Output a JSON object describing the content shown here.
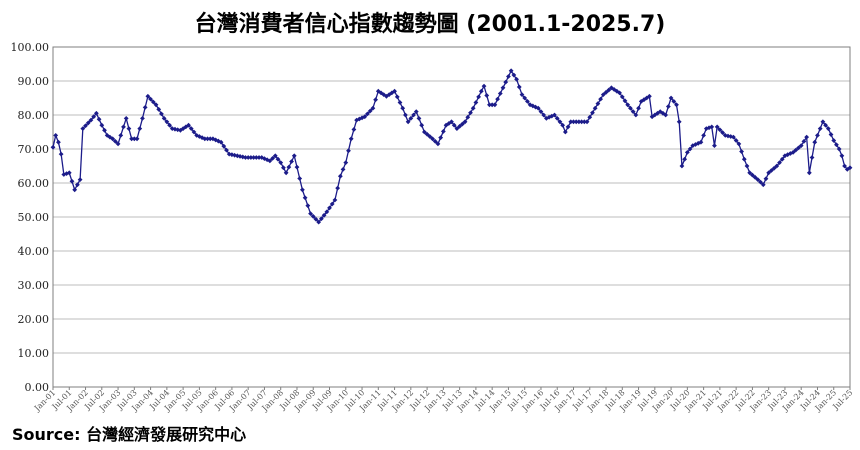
{
  "title": "台灣消費者信心指數趨勢圖 (2001.1-2025.7)",
  "source": "Source: 台灣經濟發展研究中心",
  "colors": {
    "line": "#1c1c8a",
    "marker": "#1c1c8a",
    "grid": "#bdbdbd",
    "axis": "#7f7f7f"
  },
  "chart_data": {
    "type": "line",
    "title": "台灣消費者信心指數趨勢圖 (2001.1-2025.7)",
    "xlabel": "",
    "ylabel": "",
    "ylim": [
      0,
      100
    ],
    "y_ticks": [
      "0.00",
      "10.00",
      "20.00",
      "30.00",
      "40.00",
      "50.00",
      "60.00",
      "70.00",
      "80.00",
      "90.00",
      "100.00"
    ],
    "grid": true,
    "legend": "none",
    "x_start": "Jan-01",
    "x_end": "Jul-25",
    "x_tick_labels": [
      "Jan-01",
      "Jul-01",
      "Jan-02",
      "Jul-02",
      "Jan-03",
      "Jul-03",
      "Jan-04",
      "Jul-04",
      "Jan-05",
      "Jul-05",
      "Jan-06",
      "Jul-06",
      "Jan-07",
      "Jul-07",
      "Jan-08",
      "Jul-08",
      "Jan-09",
      "Jul-09",
      "Jan-10",
      "Jul-10",
      "Jan-11",
      "Jul-11",
      "Jan-12",
      "Jul-12",
      "Jan-13",
      "Jul-13",
      "Jan-14",
      "Jul-14",
      "Jan-15",
      "Jul-15",
      "Jan-16",
      "Jul-16",
      "Jan-17",
      "Jul-17",
      "Jan-18",
      "Jul-18",
      "Jan-19",
      "Jul-19",
      "Jan-20",
      "Jul-20",
      "Jan-21",
      "Jul-21",
      "Jan-22",
      "Jul-22",
      "Jan-23",
      "Jul-23",
      "Jan-24",
      "Jul-24",
      "Jan-25",
      "Jul-25"
    ],
    "anchors": [
      [
        "Jan-01",
        70.5
      ],
      [
        "Feb-01",
        74
      ],
      [
        "Mar-01",
        72
      ],
      [
        "Apr-01",
        68.5
      ],
      [
        "May-01",
        62.5
      ],
      [
        "Jul-01",
        63
      ],
      [
        "Sep-01",
        58
      ],
      [
        "Nov-01",
        61
      ],
      [
        "Dec-01",
        76
      ],
      [
        "Mar-02",
        78.5
      ],
      [
        "May-02",
        80.5
      ],
      [
        "Jul-02",
        77
      ],
      [
        "Sep-02",
        74
      ],
      [
        "Nov-02",
        73
      ],
      [
        "Jan-03",
        71.5
      ],
      [
        "Apr-03",
        79
      ],
      [
        "Jun-03",
        73
      ],
      [
        "Aug-03",
        73
      ],
      [
        "Oct-03",
        79
      ],
      [
        "Dec-03",
        85.5
      ],
      [
        "Mar-04",
        83
      ],
      [
        "Jun-04",
        79
      ],
      [
        "Sep-04",
        76
      ],
      [
        "Dec-04",
        75.5
      ],
      [
        "Mar-05",
        77
      ],
      [
        "Jun-05",
        74
      ],
      [
        "Sep-05",
        73
      ],
      [
        "Dec-05",
        73
      ],
      [
        "Mar-06",
        72
      ],
      [
        "Jun-06",
        68.5
      ],
      [
        "Sep-06",
        68
      ],
      [
        "Dec-06",
        67.5
      ],
      [
        "Mar-07",
        67.5
      ],
      [
        "Jun-07",
        67.5
      ],
      [
        "Sep-07",
        66.5
      ],
      [
        "Nov-07",
        68
      ],
      [
        "Jan-08",
        66
      ],
      [
        "Mar-08",
        63
      ],
      [
        "Jun-08",
        68
      ],
      [
        "Sep-08",
        58
      ],
      [
        "Dec-08",
        51
      ],
      [
        "Mar-09",
        48.5
      ],
      [
        "Jun-09",
        51.5
      ],
      [
        "Sep-09",
        55
      ],
      [
        "Nov-09",
        62
      ],
      [
        "Jan-10",
        66
      ],
      [
        "Mar-10",
        73
      ],
      [
        "May-10",
        78.5
      ],
      [
        "Aug-10",
        79.5
      ],
      [
        "Nov-10",
        82
      ],
      [
        "Jan-11",
        87
      ],
      [
        "Apr-11",
        85.5
      ],
      [
        "Jul-11",
        87
      ],
      [
        "Oct-11",
        82
      ],
      [
        "Dec-11",
        78
      ],
      [
        "Mar-12",
        81
      ],
      [
        "Jun-12",
        75
      ],
      [
        "Sep-12",
        73
      ],
      [
        "Nov-12",
        71.5
      ],
      [
        "Feb-13",
        77
      ],
      [
        "Apr-13",
        78
      ],
      [
        "Jun-13",
        76
      ],
      [
        "Sep-13",
        78
      ],
      [
        "Dec-13",
        82
      ],
      [
        "Mar-14",
        87
      ],
      [
        "Apr-14",
        88.5
      ],
      [
        "Jun-14",
        83
      ],
      [
        "Aug-14",
        83
      ],
      [
        "Nov-14",
        88
      ],
      [
        "Feb-15",
        93
      ],
      [
        "Apr-15",
        90.5
      ],
      [
        "Jun-15",
        86
      ],
      [
        "Sep-15",
        83
      ],
      [
        "Dec-15",
        82
      ],
      [
        "Mar-16",
        79
      ],
      [
        "Jun-16",
        80
      ],
      [
        "Sep-16",
        77
      ],
      [
        "Oct-16",
        75
      ],
      [
        "Dec-16",
        78
      ],
      [
        "Mar-17",
        78
      ],
      [
        "Jun-17",
        78
      ],
      [
        "Sep-17",
        82
      ],
      [
        "Dec-17",
        86
      ],
      [
        "Mar-18",
        88
      ],
      [
        "Jun-18",
        86.5
      ],
      [
        "Sep-18",
        83
      ],
      [
        "Dec-18",
        80
      ],
      [
        "Feb-19",
        84
      ],
      [
        "May-19",
        85.5
      ],
      [
        "Jun-19",
        79.5
      ],
      [
        "Sep-19",
        81
      ],
      [
        "Nov-19",
        80
      ],
      [
        "Jan-20",
        85
      ],
      [
        "Mar-20",
        83
      ],
      [
        "Apr-20",
        78
      ],
      [
        "May-20",
        65
      ],
      [
        "Jul-20",
        69
      ],
      [
        "Sep-20",
        71
      ],
      [
        "Dec-20",
        72
      ],
      [
        "Feb-21",
        76
      ],
      [
        "Apr-21",
        76.5
      ],
      [
        "May-21",
        71
      ],
      [
        "Jun-21",
        76.5
      ],
      [
        "Sep-21",
        74
      ],
      [
        "Dec-21",
        73.5
      ],
      [
        "Feb-22",
        71.5
      ],
      [
        "Apr-22",
        67
      ],
      [
        "Jun-22",
        63
      ],
      [
        "Sep-22",
        61
      ],
      [
        "Nov-22",
        59.5
      ],
      [
        "Jan-23",
        63
      ],
      [
        "Apr-23",
        65
      ],
      [
        "Jul-23",
        68
      ],
      [
        "Oct-23",
        69
      ],
      [
        "Jan-24",
        71
      ],
      [
        "Mar-24",
        73.5
      ],
      [
        "Apr-24",
        63
      ],
      [
        "Jun-24",
        72
      ],
      [
        "Sep-24",
        78
      ],
      [
        "Nov-24",
        76
      ],
      [
        "Jan-25",
        72.5
      ],
      [
        "Mar-25",
        70
      ],
      [
        "Apr-25",
        68
      ],
      [
        "May-25",
        65
      ],
      [
        "Jun-25",
        64
      ],
      [
        "Jul-25",
        64.5
      ]
    ]
  }
}
